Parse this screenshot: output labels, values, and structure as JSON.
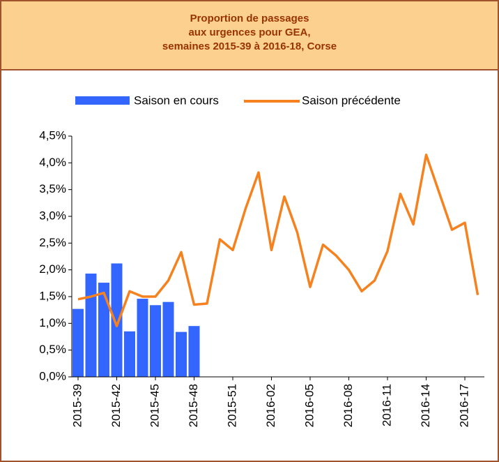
{
  "chart_data": {
    "type": "bar+line",
    "title": [
      "Proportion de passages",
      "aux urgences pour GEA,",
      "semaines 2015-39 à 2016-18, Corse"
    ],
    "categories": [
      "2015-39",
      null,
      null,
      "2015-42",
      null,
      null,
      "2015-45",
      null,
      null,
      "2015-48",
      null,
      null,
      "2015-51",
      null,
      null,
      "2016-02",
      null,
      null,
      "2016-05",
      null,
      null,
      "2016-08",
      null,
      null,
      "2016-11",
      null,
      null,
      "2016-14",
      null,
      null,
      "2016-17",
      null
    ],
    "series": [
      {
        "name": "Saison en cours",
        "type": "bar",
        "color": "#3366ff",
        "values": [
          1.27,
          1.93,
          1.76,
          2.12,
          0.85,
          1.46,
          1.34,
          1.4,
          0.84,
          0.95,
          null,
          null,
          null,
          null,
          null,
          null,
          null,
          null,
          null,
          null,
          null,
          null,
          null,
          null,
          null,
          null,
          null,
          null,
          null,
          null,
          null,
          null
        ]
      },
      {
        "name": "Saison précédente",
        "type": "line",
        "color": "#f5821f",
        "values": [
          1.45,
          1.5,
          1.57,
          0.95,
          1.6,
          1.5,
          1.5,
          1.8,
          2.33,
          1.35,
          1.37,
          2.57,
          2.37,
          3.15,
          3.82,
          2.37,
          3.37,
          2.7,
          1.68,
          2.47,
          2.27,
          2.0,
          1.6,
          1.8,
          2.35,
          3.42,
          2.85,
          4.15,
          3.45,
          2.75,
          2.88,
          1.53
        ]
      }
    ],
    "ylim": [
      0,
      4.5
    ],
    "yticks": [
      {
        "value": 0,
        "label": "0,0%"
      },
      {
        "value": 0.5,
        "label": "0,5%"
      },
      {
        "value": 1,
        "label": "1,0%"
      },
      {
        "value": 1.5,
        "label": "1,5%"
      },
      {
        "value": 2,
        "label": "2,0%"
      },
      {
        "value": 2.5,
        "label": "2,5%"
      },
      {
        "value": 3,
        "label": "3,0%"
      },
      {
        "value": 3.5,
        "label": "3,5%"
      },
      {
        "value": 4,
        "label": "4,0%"
      },
      {
        "value": 4.5,
        "label": "4,5%"
      }
    ],
    "legend": "top"
  }
}
